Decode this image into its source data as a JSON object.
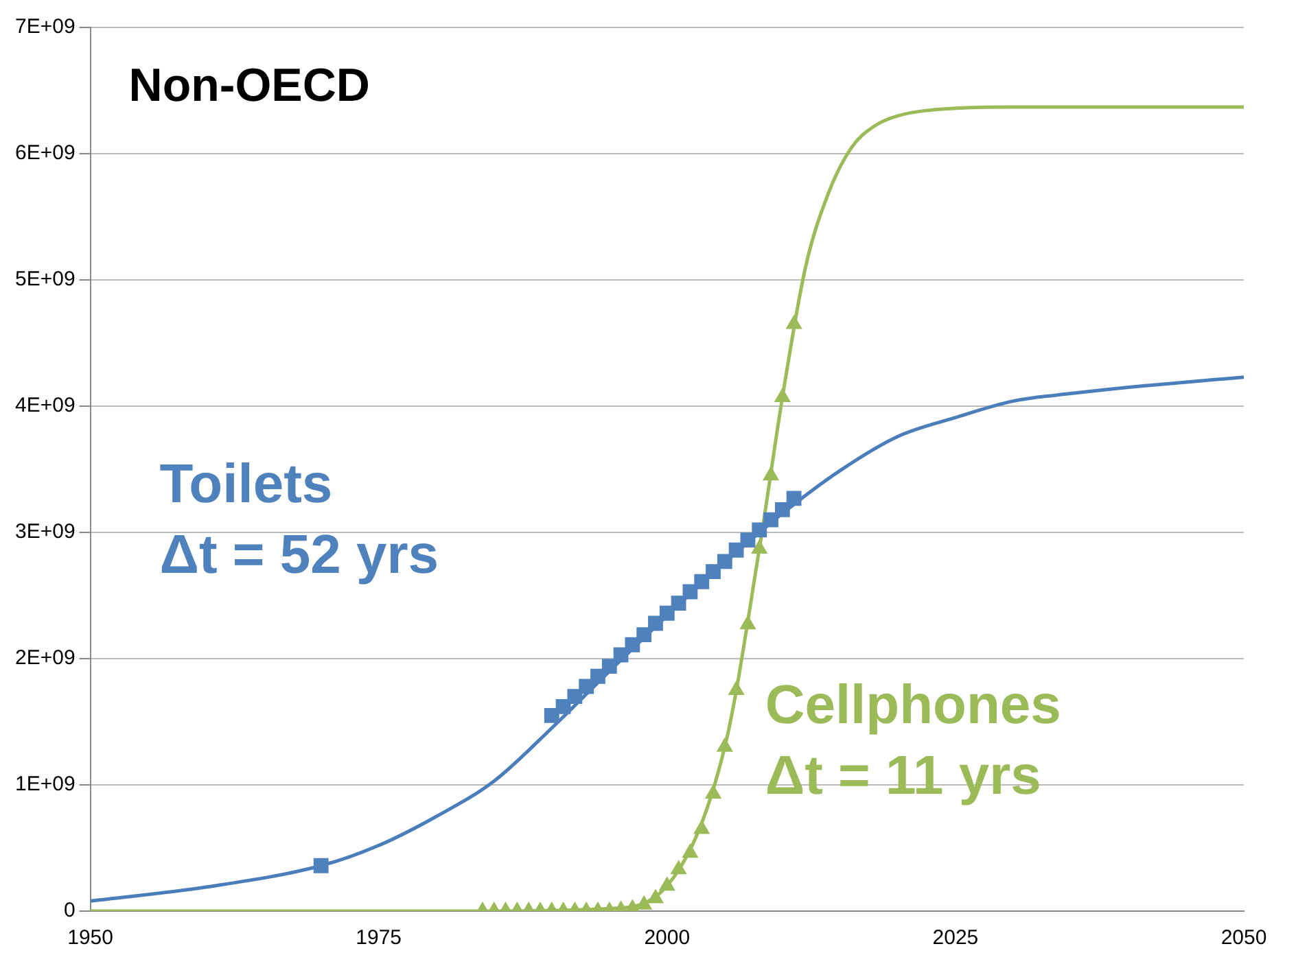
{
  "chart_data": {
    "type": "scatter",
    "title": "Non-OECD",
    "xlim": [
      1950,
      2050
    ],
    "xticks": [
      1950,
      1975,
      2000,
      2025,
      2050
    ],
    "ylim": [
      0,
      7000000000
    ],
    "yticks": [
      0,
      {
        "value": 1000000000,
        "label": "1E+09"
      },
      {
        "value": 2000000000,
        "label": "2E+09"
      },
      {
        "value": 3000000000,
        "label": "3E+09"
      },
      {
        "value": 4000000000,
        "label": "4E+09"
      },
      {
        "value": 5000000000,
        "label": "5E+09"
      },
      {
        "value": 6000000000,
        "label": "6E+09"
      },
      {
        "value": 7000000000,
        "label": "7E+09"
      }
    ],
    "grid": "y",
    "legend": false,
    "series": [
      {
        "type": "scatter",
        "marker": "square",
        "color": "#4f81bd",
        "x": [
          1970,
          1990,
          1991,
          1992,
          1993,
          1994,
          1995,
          1996,
          1997,
          1998,
          1999,
          2000,
          2001,
          2002,
          2003,
          2004,
          2005,
          2006,
          2007,
          2008,
          2009,
          2010,
          2011
        ],
        "values": [
          360000000,
          1550000000,
          1620000000,
          1700000000,
          1780000000,
          1860000000,
          1940000000,
          2030000000,
          2110000000,
          2190000000,
          2280000000,
          2360000000,
          2440000000,
          2530000000,
          2610000000,
          2690000000,
          2770000000,
          2860000000,
          2940000000,
          3020000000,
          3100000000,
          3180000000,
          3270000000
        ]
      },
      {
        "type": "line",
        "marker": "none",
        "color": "#4a7ebb",
        "x": [
          1950,
          1960,
          1970,
          1975,
          1980,
          1985,
          1990,
          1995,
          2000,
          2005,
          2010,
          2015,
          2020,
          2025,
          2030,
          2035,
          2040,
          2045,
          2050
        ],
        "values": [
          80000000,
          190000000,
          360000000,
          520000000,
          750000000,
          1030000000,
          1450000000,
          1900000000,
          2340000000,
          2760000000,
          3150000000,
          3490000000,
          3760000000,
          3910000000,
          4040000000,
          4100000000,
          4150000000,
          4190000000,
          4230000000
        ]
      },
      {
        "type": "scatter",
        "marker": "triangle",
        "color": "#9bbb59",
        "x": [
          1984,
          1985,
          1986,
          1987,
          1988,
          1989,
          1990,
          1991,
          1992,
          1993,
          1994,
          1995,
          1996,
          1997,
          1998,
          1999,
          2000,
          2001,
          2002,
          2003,
          2004,
          2005,
          2006,
          2007,
          2008,
          2009,
          2010,
          2011
        ],
        "values": [
          0,
          0,
          0,
          0,
          0,
          0,
          0,
          0,
          0,
          0,
          0,
          0,
          10000000,
          20000000,
          50000000,
          100000000,
          200000000,
          330000000,
          460000000,
          650000000,
          930000000,
          1300000000,
          1750000000,
          2270000000,
          2870000000,
          3450000000,
          4070000000,
          4650000000
        ]
      },
      {
        "type": "line",
        "marker": "none",
        "color": "#9bbb59",
        "x": [
          1950,
          1985,
          1995,
          2000,
          2005,
          2008,
          2010,
          2012,
          2014,
          2016,
          2018,
          2020,
          2025,
          2030,
          2050
        ],
        "values": [
          0,
          0,
          20000000,
          200000000,
          1300000000,
          2870000000,
          4070000000,
          5100000000,
          5690000000,
          6050000000,
          6220000000,
          6300000000,
          6360000000,
          6370000000,
          6370000000
        ]
      }
    ],
    "annotations": [
      "Toilets",
      "Δt = 52 yrs",
      "Cellphones",
      "Δt = 11 yrs"
    ]
  }
}
